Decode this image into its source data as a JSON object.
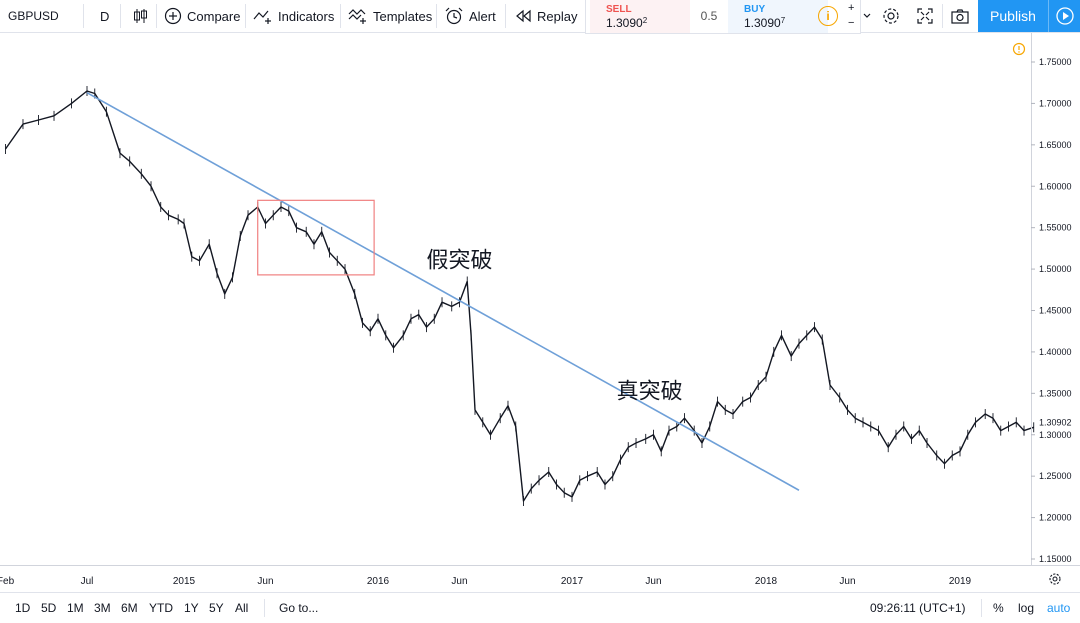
{
  "toolbar": {
    "symbol": "GBPUSD",
    "interval": "D",
    "compare": "Compare",
    "indicators": "Indicators",
    "templates": "Templates",
    "alert": "Alert",
    "replay": "Replay",
    "publish": "Publish"
  },
  "trade": {
    "sell_label": "SELL",
    "sell_price_main": "1.3090",
    "sell_price_sup": "2",
    "spread": "0.5",
    "buy_label": "BUY",
    "buy_price_main": "1.3090",
    "buy_price_sup": "7",
    "qty_plus": "+",
    "qty_minus": "−",
    "sell_color": "#ef5350",
    "buy_color": "#2196f3"
  },
  "bottom": {
    "ranges": [
      "1D",
      "5D",
      "1M",
      "3M",
      "6M",
      "YTD",
      "1Y",
      "5Y",
      "All"
    ],
    "goto": "Go to...",
    "clock": "09:26:11 (UTC+1)",
    "percent": "%",
    "log": "log",
    "auto": "auto"
  },
  "chart_data": {
    "type": "line",
    "symbol": "GBPUSD",
    "last_price_label": "1.30902",
    "y_ticks": [
      "1.75000",
      "1.70000",
      "1.65000",
      "1.60000",
      "1.55000",
      "1.50000",
      "1.45000",
      "1.40000",
      "1.35000",
      "1.30000",
      "1.25000",
      "1.20000",
      "1.15000"
    ],
    "x_ticks": [
      "Feb",
      "Jul",
      "2015",
      "Jun",
      "2016",
      "Jun",
      "2017",
      "Jun",
      "2018",
      "Jun",
      "2019"
    ],
    "ylim": [
      1.13,
      1.78
    ],
    "series": [
      {
        "x": [
          2014.08,
          2014.17,
          2014.25,
          2014.33,
          2014.42,
          2014.5,
          2014.54,
          2014.6,
          2014.67,
          2014.72,
          2014.78,
          2014.83,
          2014.88,
          2014.92,
          2014.97,
          2015.0,
          2015.04,
          2015.08,
          2015.13,
          2015.17,
          2015.21,
          2015.25,
          2015.29,
          2015.33,
          2015.38,
          2015.42,
          2015.46,
          2015.5,
          2015.54,
          2015.58,
          2015.63,
          2015.67,
          2015.71,
          2015.75,
          2015.79,
          2015.83,
          2015.88,
          2015.92,
          2015.96,
          2016.0,
          2016.04,
          2016.08,
          2016.13,
          2016.17,
          2016.21,
          2016.25,
          2016.29,
          2016.33,
          2016.38,
          2016.42,
          2016.46,
          2016.48,
          2016.5,
          2016.54,
          2016.58,
          2016.63,
          2016.67,
          2016.71,
          2016.75,
          2016.79,
          2016.83,
          2016.88,
          2016.92,
          2016.96,
          2017.0,
          2017.04,
          2017.08,
          2017.13,
          2017.17,
          2017.21,
          2017.25,
          2017.29,
          2017.33,
          2017.38,
          2017.42,
          2017.46,
          2017.5,
          2017.54,
          2017.58,
          2017.63,
          2017.67,
          2017.71,
          2017.75,
          2017.79,
          2017.83,
          2017.88,
          2017.92,
          2017.96,
          2018.0,
          2018.04,
          2018.08,
          2018.13,
          2018.17,
          2018.21,
          2018.25,
          2018.29,
          2018.33,
          2018.38,
          2018.42,
          2018.46,
          2018.5,
          2018.54,
          2018.58,
          2018.63,
          2018.67,
          2018.71,
          2018.75,
          2018.79,
          2018.83,
          2018.88,
          2018.92,
          2018.96,
          2019.0,
          2019.04,
          2019.08,
          2019.13,
          2019.17,
          2019.21,
          2019.25,
          2019.29,
          2019.33,
          2019.38
        ],
        "y": [
          1.645,
          1.675,
          1.68,
          1.685,
          1.7,
          1.715,
          1.712,
          1.69,
          1.64,
          1.63,
          1.615,
          1.6,
          1.575,
          1.565,
          1.56,
          1.555,
          1.515,
          1.51,
          1.53,
          1.495,
          1.47,
          1.49,
          1.54,
          1.565,
          1.575,
          1.555,
          1.565,
          1.575,
          1.57,
          1.55,
          1.545,
          1.53,
          1.545,
          1.52,
          1.51,
          1.5,
          1.47,
          1.435,
          1.425,
          1.44,
          1.42,
          1.405,
          1.42,
          1.44,
          1.445,
          1.43,
          1.44,
          1.46,
          1.455,
          1.46,
          1.485,
          1.42,
          1.33,
          1.315,
          1.3,
          1.32,
          1.335,
          1.31,
          1.22,
          1.235,
          1.245,
          1.255,
          1.24,
          1.23,
          1.225,
          1.245,
          1.25,
          1.255,
          1.24,
          1.25,
          1.27,
          1.285,
          1.29,
          1.295,
          1.3,
          1.28,
          1.305,
          1.31,
          1.32,
          1.305,
          1.29,
          1.31,
          1.34,
          1.33,
          1.325,
          1.34,
          1.345,
          1.36,
          1.37,
          1.4,
          1.42,
          1.395,
          1.41,
          1.42,
          1.43,
          1.415,
          1.36,
          1.345,
          1.33,
          1.32,
          1.315,
          1.31,
          1.305,
          1.285,
          1.3,
          1.31,
          1.295,
          1.305,
          1.29,
          1.275,
          1.265,
          1.275,
          1.28,
          1.3,
          1.315,
          1.325,
          1.32,
          1.305,
          1.31,
          1.315,
          1.305,
          1.309
        ]
      }
    ],
    "trendline": {
      "x": [
        2014.5,
        2018.17
      ],
      "y": [
        1.713,
        1.233
      ],
      "color": "#6fa0d8"
    },
    "highlight_box": {
      "x": [
        2015.38,
        2015.98
      ],
      "y": [
        1.493,
        1.583
      ],
      "color": "#f08080"
    },
    "annotations": [
      {
        "text": "假突破",
        "x": 2016.42,
        "y": 1.502
      },
      {
        "text": "真突破",
        "x": 2017.4,
        "y": 1.344
      }
    ],
    "grid": false
  }
}
